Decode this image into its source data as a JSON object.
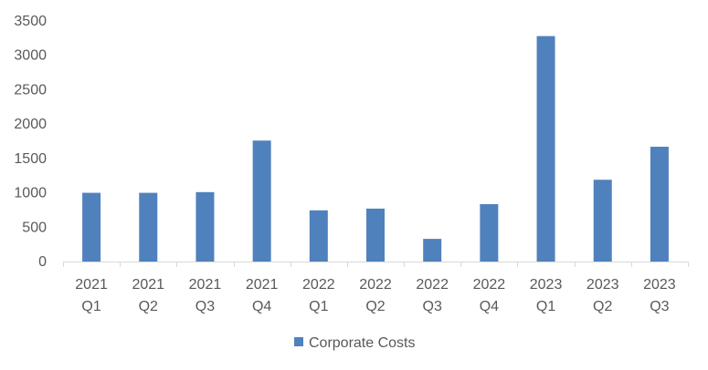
{
  "chart_data": {
    "type": "bar",
    "categories": [
      [
        "2021",
        "Q1"
      ],
      [
        "2021",
        "Q2"
      ],
      [
        "2021",
        "Q3"
      ],
      [
        "2021",
        "Q4"
      ],
      [
        "2022",
        "Q1"
      ],
      [
        "2022",
        "Q2"
      ],
      [
        "2022",
        "Q3"
      ],
      [
        "2022",
        "Q4"
      ],
      [
        "2023",
        "Q1"
      ],
      [
        "2023",
        "Q2"
      ],
      [
        "2023",
        "Q3"
      ]
    ],
    "series": [
      {
        "name": "Corporate Costs",
        "color": "#4F81BD",
        "values": [
          1000,
          1000,
          1010,
          1760,
          745,
          770,
          330,
          835,
          3280,
          1190,
          1670
        ]
      }
    ],
    "yticks": [
      "0",
      "500",
      "1000",
      "1500",
      "2000",
      "2500",
      "3000",
      "3500"
    ],
    "ylim": [
      0,
      3500
    ],
    "grid": false,
    "legend": "bottom",
    "title": "",
    "xlabel": "",
    "ylabel": ""
  }
}
